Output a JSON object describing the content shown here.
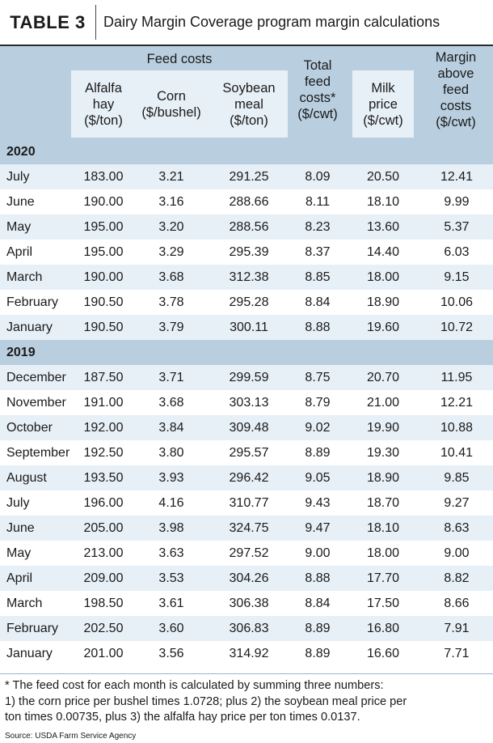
{
  "title": {
    "tag": "TABLE 3",
    "text": "Dairy Margin Coverage program margin calculations"
  },
  "header": {
    "feed_costs": "Feed costs",
    "alfalfa": [
      "Alfalfa",
      "hay",
      "($/ton)"
    ],
    "corn": [
      "Corn",
      "($/bushel)"
    ],
    "soybean": [
      "Soybean",
      "meal",
      "($/ton)"
    ],
    "total": [
      "Total",
      "feed",
      "costs*",
      "($/cwt)"
    ],
    "milk": [
      "Milk",
      "price",
      "($/cwt)"
    ],
    "margin": [
      "Margin",
      "above",
      "feed",
      "costs",
      "($/cwt)"
    ]
  },
  "sections": [
    {
      "year": "2020",
      "rows": [
        [
          "July",
          "183.00",
          "3.21",
          "291.25",
          "8.09",
          "20.50",
          "12.41"
        ],
        [
          "June",
          "190.00",
          "3.16",
          "288.66",
          "8.11",
          "18.10",
          "9.99"
        ],
        [
          "May",
          "195.00",
          "3.20",
          "288.56",
          "8.23",
          "13.60",
          "5.37"
        ],
        [
          "April",
          "195.00",
          "3.29",
          "295.39",
          "8.37",
          "14.40",
          "6.03"
        ],
        [
          "March",
          "190.00",
          "3.68",
          "312.38",
          "8.85",
          "18.00",
          "9.15"
        ],
        [
          "February",
          "190.50",
          "3.78",
          "295.28",
          "8.84",
          "18.90",
          "10.06"
        ],
        [
          "January",
          "190.50",
          "3.79",
          "300.11",
          "8.88",
          "19.60",
          "10.72"
        ]
      ]
    },
    {
      "year": "2019",
      "rows": [
        [
          "December",
          "187.50",
          "3.71",
          "299.59",
          "8.75",
          "20.70",
          "11.95"
        ],
        [
          "November",
          "191.00",
          "3.68",
          "303.13",
          "8.79",
          "21.00",
          "12.21"
        ],
        [
          "October",
          "192.00",
          "3.84",
          "309.48",
          "9.02",
          "19.90",
          "10.88"
        ],
        [
          "September",
          "192.50",
          "3.80",
          "295.57",
          "8.89",
          "19.30",
          "10.41"
        ],
        [
          "August",
          "193.50",
          "3.93",
          "296.42",
          "9.05",
          "18.90",
          "9.85"
        ],
        [
          "July",
          "196.00",
          "4.16",
          "310.77",
          "9.43",
          "18.70",
          "9.27"
        ],
        [
          "June",
          "205.00",
          "3.98",
          "324.75",
          "9.47",
          "18.10",
          "8.63"
        ],
        [
          "May",
          "213.00",
          "3.63",
          "297.52",
          "9.00",
          "18.00",
          "9.00"
        ],
        [
          "April",
          "209.00",
          "3.53",
          "304.26",
          "8.88",
          "17.70",
          "8.82"
        ],
        [
          "March",
          "198.50",
          "3.61",
          "306.38",
          "8.84",
          "17.50",
          "8.66"
        ],
        [
          "February",
          "202.50",
          "3.60",
          "306.83",
          "8.89",
          "16.80",
          "7.91"
        ],
        [
          "January",
          "201.00",
          "3.56",
          "314.92",
          "8.89",
          "16.60",
          "7.71"
        ]
      ]
    }
  ],
  "footnote": [
    "* The feed cost for each month is calculated by summing three numbers:",
    "1) the corn price per bushel times 1.0728; plus 2) the soybean meal price per",
    "ton times 0.00735, plus 3) the alfalfa hay price per ton times 0.0137."
  ],
  "source": "Source: USDA Farm Service Agency",
  "colors": {
    "header_blue": "#b9cfe0",
    "light_blue": "#e8f0f7"
  }
}
